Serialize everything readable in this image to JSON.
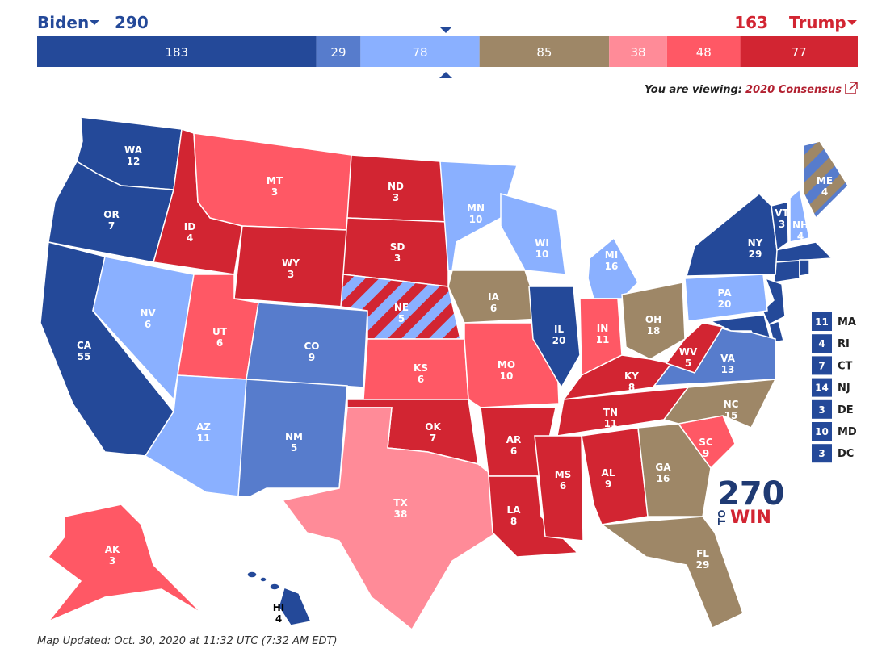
{
  "header": {
    "left_name": "Biden",
    "left_total": 290,
    "right_total": 163,
    "right_name": "Trump"
  },
  "bar": {
    "segments": [
      {
        "value": 183,
        "color": "#244999"
      },
      {
        "value": 29,
        "color": "#577ccc"
      },
      {
        "value": 78,
        "color": "#8ab0ff"
      },
      {
        "value": 85,
        "color": "#9e8767"
      },
      {
        "value": 38,
        "color": "#ff8b98"
      },
      {
        "value": 48,
        "color": "#ff5865"
      },
      {
        "value": 77,
        "color": "#d22532"
      }
    ]
  },
  "viewing": {
    "label": "You are viewing:",
    "map_name": "2020 Consensus"
  },
  "states": [
    {
      "abbr": "WA",
      "ev": 12,
      "color": "#244999"
    },
    {
      "abbr": "OR",
      "ev": 7,
      "color": "#244999"
    },
    {
      "abbr": "CA",
      "ev": 55,
      "color": "#244999"
    },
    {
      "abbr": "NV",
      "ev": 6,
      "color": "#8ab0ff"
    },
    {
      "abbr": "ID",
      "ev": 4,
      "color": "#d22532"
    },
    {
      "abbr": "MT",
      "ev": 3,
      "color": "#ff5865"
    },
    {
      "abbr": "WY",
      "ev": 3,
      "color": "#d22532"
    },
    {
      "abbr": "UT",
      "ev": 6,
      "color": "#ff5865"
    },
    {
      "abbr": "AZ",
      "ev": 11,
      "color": "#8ab0ff"
    },
    {
      "abbr": "CO",
      "ev": 9,
      "color": "#577ccc"
    },
    {
      "abbr": "NM",
      "ev": 5,
      "color": "#577ccc"
    },
    {
      "abbr": "ND",
      "ev": 3,
      "color": "#d22532"
    },
    {
      "abbr": "SD",
      "ev": 3,
      "color": "#d22532"
    },
    {
      "abbr": "NE",
      "ev": 5,
      "color": "#d22532",
      "stripe": "#8ab0ff"
    },
    {
      "abbr": "KS",
      "ev": 6,
      "color": "#ff5865"
    },
    {
      "abbr": "OK",
      "ev": 7,
      "color": "#d22532"
    },
    {
      "abbr": "TX",
      "ev": 38,
      "color": "#ff8b98"
    },
    {
      "abbr": "MN",
      "ev": 10,
      "color": "#8ab0ff"
    },
    {
      "abbr": "IA",
      "ev": 6,
      "color": "#9e8767"
    },
    {
      "abbr": "MO",
      "ev": 10,
      "color": "#ff5865"
    },
    {
      "abbr": "AR",
      "ev": 6,
      "color": "#d22532"
    },
    {
      "abbr": "LA",
      "ev": 8,
      "color": "#d22532"
    },
    {
      "abbr": "WI",
      "ev": 10,
      "color": "#8ab0ff"
    },
    {
      "abbr": "IL",
      "ev": 20,
      "color": "#244999"
    },
    {
      "abbr": "MI",
      "ev": 16,
      "color": "#8ab0ff"
    },
    {
      "abbr": "IN",
      "ev": 11,
      "color": "#ff5865"
    },
    {
      "abbr": "OH",
      "ev": 18,
      "color": "#9e8767"
    },
    {
      "abbr": "KY",
      "ev": 8,
      "color": "#d22532"
    },
    {
      "abbr": "TN",
      "ev": 11,
      "color": "#d22532"
    },
    {
      "abbr": "MS",
      "ev": 6,
      "color": "#d22532"
    },
    {
      "abbr": "AL",
      "ev": 9,
      "color": "#d22532"
    },
    {
      "abbr": "GA",
      "ev": 16,
      "color": "#9e8767"
    },
    {
      "abbr": "FL",
      "ev": 29,
      "color": "#9e8767"
    },
    {
      "abbr": "SC",
      "ev": 9,
      "color": "#ff5865"
    },
    {
      "abbr": "NC",
      "ev": 15,
      "color": "#9e8767"
    },
    {
      "abbr": "VA",
      "ev": 13,
      "color": "#577ccc"
    },
    {
      "abbr": "WV",
      "ev": 5,
      "color": "#d22532"
    },
    {
      "abbr": "PA",
      "ev": 20,
      "color": "#8ab0ff"
    },
    {
      "abbr": "NY",
      "ev": 29,
      "color": "#244999"
    },
    {
      "abbr": "VT",
      "ev": 3,
      "color": "#244999"
    },
    {
      "abbr": "NH",
      "ev": 4,
      "color": "#8ab0ff"
    },
    {
      "abbr": "ME",
      "ev": 4,
      "color": "#577ccc",
      "stripe": "#9e8767"
    },
    {
      "abbr": "AK",
      "ev": 3,
      "color": "#ff5865"
    },
    {
      "abbr": "HI",
      "ev": 4,
      "color": "#244999"
    }
  ],
  "small_states": [
    {
      "abbr": "MA",
      "ev": 11,
      "color": "#244999"
    },
    {
      "abbr": "RI",
      "ev": 4,
      "color": "#244999"
    },
    {
      "abbr": "CT",
      "ev": 7,
      "color": "#244999"
    },
    {
      "abbr": "NJ",
      "ev": 14,
      "color": "#244999"
    },
    {
      "abbr": "DE",
      "ev": 3,
      "color": "#244999"
    },
    {
      "abbr": "MD",
      "ev": 10,
      "color": "#244999"
    },
    {
      "abbr": "DC",
      "ev": 3,
      "color": "#244999"
    }
  ],
  "logo": {
    "number": "270",
    "to": "TO",
    "win": "WIN"
  },
  "footer": "Map Updated: Oct. 30, 2020 at 11:32 UTC (7:32 AM EDT)"
}
